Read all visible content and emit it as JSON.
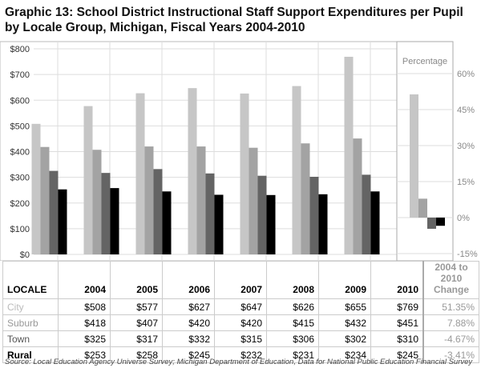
{
  "chart_data": {
    "type": "bar",
    "title": "Graphic 13: School District Instructional Staff Support Expenditures per Pupil by Locale Group, Michigan, Fiscal Years 2004-2010",
    "categories": [
      "2004",
      "2005",
      "2006",
      "2007",
      "2008",
      "2009",
      "2010"
    ],
    "series": [
      {
        "name": "City",
        "color": "#c6c6c6",
        "values": [
          508,
          577,
          627,
          647,
          626,
          655,
          769
        ],
        "display": [
          "$508",
          "$577",
          "$627",
          "$647",
          "$626",
          "$655",
          "$769"
        ],
        "change": 51.35,
        "change_label": "51.35%",
        "label_color": "#bbbbbb",
        "bold": false
      },
      {
        "name": "Suburb",
        "color": "#a3a3a3",
        "values": [
          418,
          407,
          420,
          420,
          415,
          432,
          451
        ],
        "display": [
          "$418",
          "$407",
          "$420",
          "$420",
          "$415",
          "$432",
          "$451"
        ],
        "change": 7.88,
        "change_label": "7.88%",
        "label_color": "#999999",
        "bold": false
      },
      {
        "name": "Town",
        "color": "#646464",
        "values": [
          325,
          317,
          332,
          315,
          306,
          302,
          310
        ],
        "display": [
          "$325",
          "$317",
          "$332",
          "$315",
          "$306",
          "$302",
          "$310"
        ],
        "change": -4.67,
        "change_label": "-4.67%",
        "label_color": "#555555",
        "bold": false
      },
      {
        "name": "Rural",
        "color": "#000000",
        "values": [
          253,
          258,
          245,
          232,
          231,
          234,
          245
        ],
        "display": [
          "$253",
          "$258",
          "$245",
          "$232",
          "$231",
          "$234",
          "$245"
        ],
        "change": -3.41,
        "change_label": "-3.41%",
        "label_color": "#000000",
        "bold": true
      }
    ],
    "ylim": [
      0,
      800
    ],
    "yticks": [
      "$0",
      "$100",
      "$200",
      "$300",
      "$400",
      "$500",
      "$600",
      "$700",
      "$800"
    ],
    "pct_panel": {
      "title": "Percentage",
      "ylim": [
        -15,
        60
      ],
      "yticks": [
        "-15%",
        "0%",
        "15%",
        "30%",
        "45%",
        "60%"
      ]
    },
    "table_header": {
      "locale": "LOCALE",
      "change": "2004 to 2010 Change"
    },
    "source": "Source: Local Education Agency Universe Survey; Michigan Department of Education, Data for National Public Education Financial Survey"
  }
}
